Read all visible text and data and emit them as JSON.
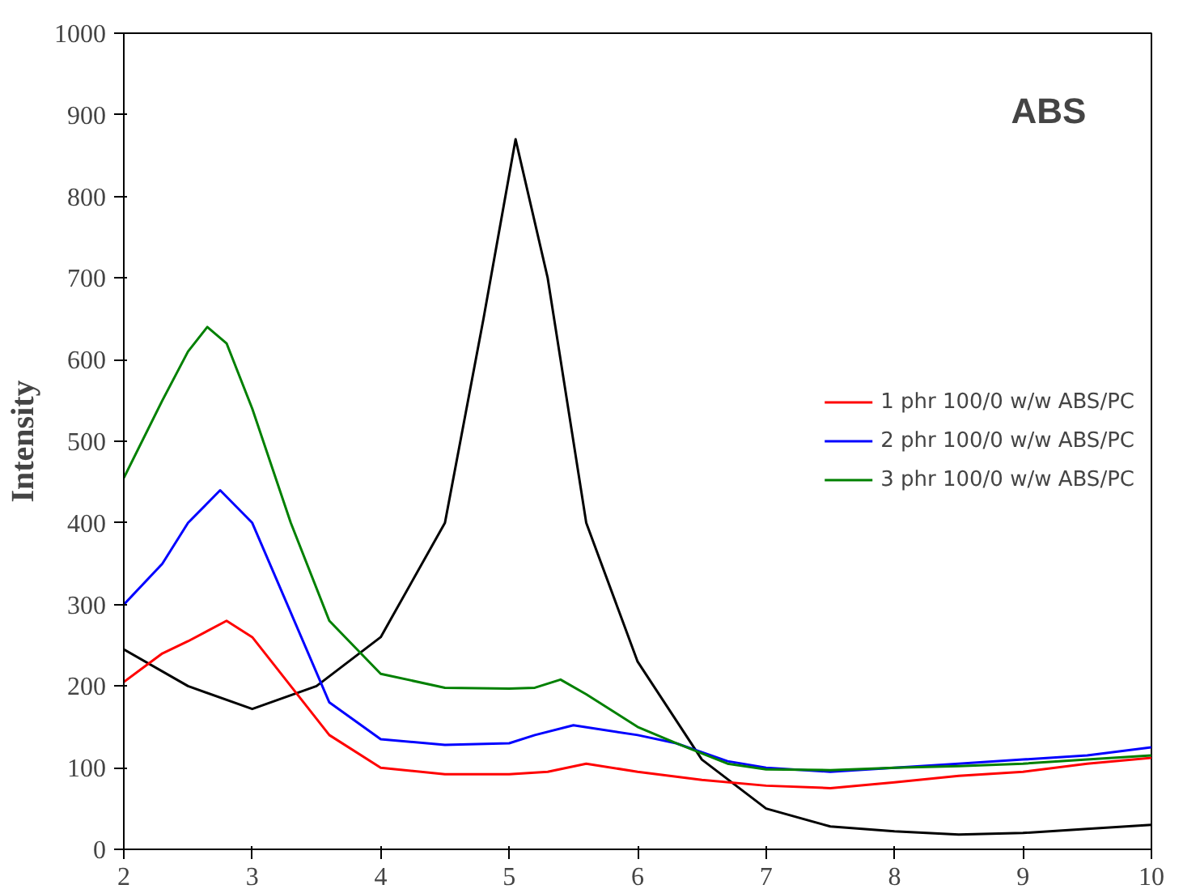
{
  "chart_data": {
    "type": "line",
    "ylabel": "Intensity",
    "annotations": [
      "ABS"
    ],
    "xlim": [
      2,
      10
    ],
    "ylim": [
      0,
      1000
    ],
    "xticks": [
      2,
      3,
      4,
      5,
      6,
      7,
      8,
      9,
      10
    ],
    "yticks": [
      0,
      100,
      200,
      300,
      400,
      500,
      600,
      700,
      800,
      900,
      1000
    ],
    "legend": "right",
    "grid": false,
    "series": [
      {
        "color": "#000000",
        "x": [
          2,
          2.5,
          3,
          3.5,
          4,
          4.5,
          4.8,
          5.05,
          5.3,
          5.6,
          6,
          6.5,
          7,
          7.5,
          8,
          8.5,
          9,
          9.5,
          10
        ],
        "values": [
          245,
          200,
          172,
          200,
          260,
          400,
          650,
          870,
          700,
          400,
          230,
          110,
          50,
          28,
          22,
          18,
          20,
          25,
          30
        ]
      },
      {
        "name": "1 phr 100/0 w/w ABS/PC",
        "color": "#ff0000",
        "x": [
          2,
          2.3,
          2.5,
          2.8,
          3,
          3.3,
          3.6,
          4,
          4.5,
          5,
          5.3,
          5.6,
          6,
          6.5,
          7,
          7.5,
          8,
          8.5,
          9,
          9.5,
          10
        ],
        "values": [
          205,
          240,
          255,
          280,
          260,
          200,
          140,
          100,
          92,
          92,
          95,
          105,
          95,
          85,
          78,
          75,
          82,
          90,
          95,
          105,
          112
        ]
      },
      {
        "name": "2 phr 100/0 w/w ABS/PC",
        "color": "#0000ff",
        "x": [
          2,
          2.3,
          2.5,
          2.75,
          3,
          3.3,
          3.6,
          4,
          4.5,
          5,
          5.2,
          5.5,
          6,
          6.3,
          6.7,
          7,
          7.5,
          8,
          8.5,
          9,
          9.5,
          10
        ],
        "values": [
          300,
          350,
          400,
          440,
          400,
          290,
          180,
          135,
          128,
          130,
          140,
          152,
          140,
          130,
          108,
          100,
          95,
          100,
          105,
          110,
          115,
          125
        ]
      },
      {
        "name": "3 phr 100/0 w/w ABS/PC",
        "color": "#008000",
        "x": [
          2,
          2.3,
          2.5,
          2.65,
          2.8,
          3,
          3.3,
          3.6,
          4,
          4.5,
          5,
          5.2,
          5.4,
          5.6,
          6,
          6.3,
          6.7,
          7,
          7.5,
          8,
          8.5,
          9,
          9.5,
          10
        ],
        "values": [
          455,
          550,
          610,
          640,
          620,
          540,
          400,
          280,
          215,
          198,
          197,
          198,
          208,
          190,
          150,
          130,
          105,
          98,
          97,
          100,
          102,
          105,
          110,
          115
        ]
      }
    ]
  }
}
